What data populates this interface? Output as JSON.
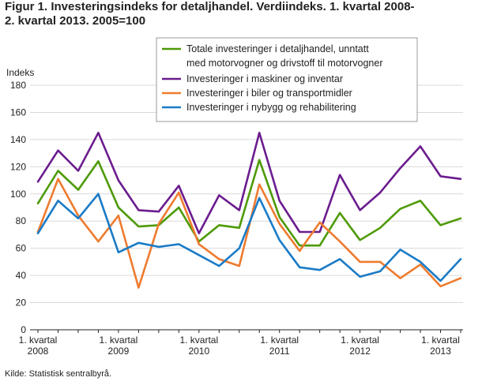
{
  "title_lines": [
    "Figur 1. Investeringsindeks for detaljhandel. Verdiindeks. 1. kvartal 2008-",
    "2. kvartal 2013. 2005=100"
  ],
  "source": "Kilde: Statistisk sentralbyrå.",
  "chart_data": {
    "type": "line",
    "ylabel": "Indeks",
    "ylim": [
      0,
      180
    ],
    "yticks": [
      0,
      20,
      40,
      60,
      80,
      100,
      120,
      140,
      160,
      180
    ],
    "grid": true,
    "legend_position": "top-right",
    "x": [
      "2008K1",
      "2008K2",
      "2008K3",
      "2008K4",
      "2009K1",
      "2009K2",
      "2009K3",
      "2009K4",
      "2010K1",
      "2010K2",
      "2010K3",
      "2010K4",
      "2011K1",
      "2011K2",
      "2011K3",
      "2011K4",
      "2012K1",
      "2012K2",
      "2012K3",
      "2012K4",
      "2013K1",
      "2013K2"
    ],
    "x_tick_labels": [
      {
        "index": 0,
        "line1": "1. kvartal",
        "line2": "2008"
      },
      {
        "index": 4,
        "line1": "1. kvartal",
        "line2": "2009"
      },
      {
        "index": 8,
        "line1": "1. kvartal",
        "line2": "2010"
      },
      {
        "index": 12,
        "line1": "1. kvartal",
        "line2": "2011"
      },
      {
        "index": 16,
        "line1": "1. kvartal",
        "line2": "2012"
      },
      {
        "index": 20,
        "line1": "1. kvartal",
        "line2": "2013"
      }
    ],
    "series": [
      {
        "name_lines": [
          "Totale investeringer i detaljhandel, unntatt",
          "med motorvogner og drivstoff til motorvogner"
        ],
        "color": "#4e9a06",
        "values": [
          93,
          117,
          103,
          124,
          90,
          76,
          77,
          90,
          65,
          77,
          75,
          125,
          83,
          62,
          62,
          86,
          66,
          75,
          89,
          95,
          77,
          82
        ]
      },
      {
        "name_lines": [
          "Investeringer i maskiner og inventar"
        ],
        "color": "#6b1c8e",
        "values": [
          109,
          132,
          117,
          145,
          110,
          88,
          87,
          106,
          71,
          99,
          88,
          145,
          95,
          72,
          72,
          114,
          88,
          101,
          119,
          135,
          113,
          111
        ]
      },
      {
        "name_lines": [
          "Investeringer i biler og transportmidler"
        ],
        "color": "#ee7b2f",
        "values": [
          72,
          111,
          84,
          65,
          84,
          31,
          78,
          101,
          63,
          52,
          47,
          107,
          78,
          58,
          79,
          65,
          50,
          50,
          38,
          48,
          32,
          38
        ]
      },
      {
        "name_lines": [
          "Investeringer i nybygg og rehabilitering"
        ],
        "color": "#1a7bc7",
        "values": [
          71,
          95,
          82,
          100,
          57,
          64,
          61,
          63,
          55,
          47,
          60,
          97,
          66,
          46,
          44,
          52,
          39,
          43,
          59,
          50,
          36,
          52
        ]
      }
    ]
  }
}
